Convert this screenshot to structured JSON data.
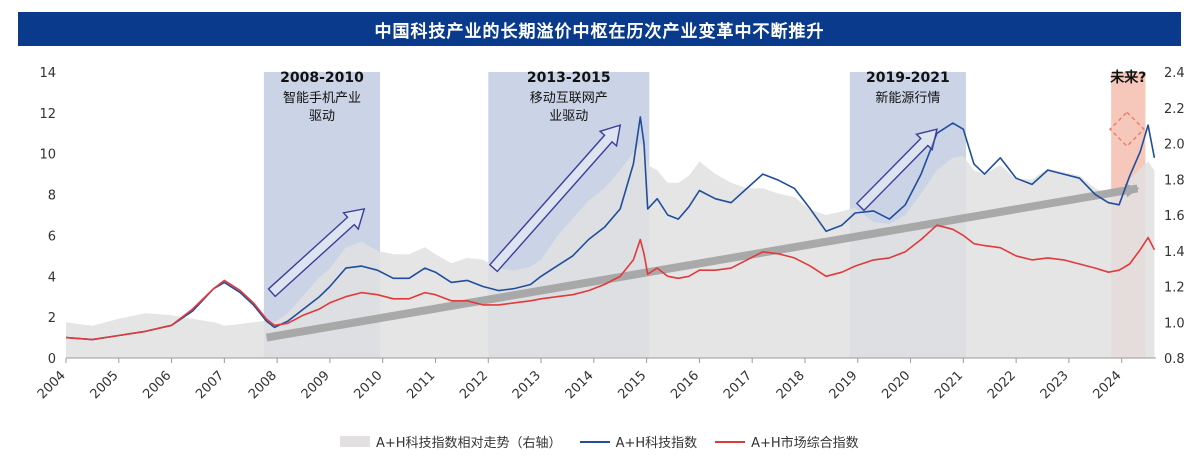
{
  "header": {
    "title": "中国科技产业的长期溢价中枢在历次产业变革中不断推升"
  },
  "chart_data": {
    "type": "line",
    "title": "中国科技产业的长期溢价中枢在历次产业变革中不断推升",
    "xlim": [
      2004.0,
      2024.65
    ],
    "ylim_left": [
      0,
      14
    ],
    "ylim_right": [
      0.8,
      2.4
    ],
    "left_ticks": [
      "0",
      "2",
      "4",
      "6",
      "8",
      "10",
      "12",
      "14"
    ],
    "right_ticks": [
      "0.8",
      "1.0",
      "1.2",
      "1.4",
      "1.6",
      "1.8",
      "2.0",
      "2.2",
      "2.4"
    ],
    "x_ticks": [
      "2004",
      "2005",
      "2006",
      "2007",
      "2008",
      "2009",
      "2010",
      "2011",
      "2012",
      "2013",
      "2014",
      "2015",
      "2016",
      "2017",
      "2018",
      "2019",
      "2020",
      "2021",
      "2022",
      "2023",
      "2024"
    ],
    "periods": [
      {
        "label": "2008-2010",
        "sub": [
          "智能手机产业",
          "驱动"
        ],
        "start": 2007.75,
        "end": 2009.95,
        "color": "#b9c6de"
      },
      {
        "label": "2013-2015",
        "sub": [
          "移动互联网产",
          "业驱动"
        ],
        "start": 2012.0,
        "end": 2015.05,
        "color": "#b9c6de"
      },
      {
        "label": "2019-2021",
        "sub": [
          "新能源行情"
        ],
        "start": 2018.85,
        "end": 2021.05,
        "color": "#b9c6de"
      },
      {
        "label": "未来?",
        "sub": [],
        "start": 2023.8,
        "end": 2024.45,
        "color": "#f3b6a4"
      }
    ],
    "series": [
      {
        "name": "A+H科技指数",
        "axis": "left",
        "color": "#1f4e9c",
        "x": [
          2004.0,
          2004.5,
          2005.0,
          2005.5,
          2006.0,
          2006.4,
          2006.8,
          2007.0,
          2007.3,
          2007.55,
          2007.8,
          2007.95,
          2008.2,
          2008.5,
          2008.8,
          2009.0,
          2009.3,
          2009.6,
          2009.9,
          2010.2,
          2010.5,
          2010.8,
          2011.0,
          2011.3,
          2011.6,
          2011.9,
          2012.2,
          2012.5,
          2012.8,
          2013.0,
          2013.3,
          2013.6,
          2013.9,
          2014.2,
          2014.5,
          2014.75,
          2014.88,
          2014.95,
          2015.02,
          2015.2,
          2015.4,
          2015.6,
          2015.8,
          2016.0,
          2016.3,
          2016.6,
          2016.9,
          2017.2,
          2017.5,
          2017.8,
          2018.1,
          2018.4,
          2018.7,
          2018.95,
          2019.3,
          2019.6,
          2019.9,
          2020.2,
          2020.5,
          2020.8,
          2021.0,
          2021.2,
          2021.4,
          2021.7,
          2022.0,
          2022.3,
          2022.6,
          2022.9,
          2023.2,
          2023.5,
          2023.75,
          2023.95,
          2024.15,
          2024.35,
          2024.5,
          2024.62
        ],
        "y": [
          1.0,
          0.9,
          1.1,
          1.3,
          1.6,
          2.3,
          3.4,
          3.7,
          3.2,
          2.6,
          1.8,
          1.5,
          1.8,
          2.4,
          3.0,
          3.5,
          4.4,
          4.5,
          4.3,
          3.9,
          3.9,
          4.4,
          4.2,
          3.7,
          3.8,
          3.5,
          3.3,
          3.4,
          3.6,
          4.0,
          4.5,
          5.0,
          5.8,
          6.4,
          7.3,
          9.5,
          11.8,
          10.5,
          7.3,
          7.8,
          7.0,
          6.8,
          7.4,
          8.2,
          7.8,
          7.6,
          8.3,
          9.0,
          8.7,
          8.3,
          7.3,
          6.2,
          6.5,
          7.1,
          7.2,
          6.8,
          7.5,
          9.0,
          11.0,
          11.5,
          11.2,
          9.5,
          9.0,
          9.8,
          8.8,
          8.5,
          9.2,
          9.0,
          8.8,
          8.0,
          7.6,
          7.5,
          8.9,
          10.1,
          11.4,
          9.8
        ]
      },
      {
        "name": "A+H市场综合指数",
        "axis": "left",
        "color": "#e03a3a",
        "x": [
          2004.0,
          2004.5,
          2005.0,
          2005.5,
          2006.0,
          2006.4,
          2006.8,
          2007.0,
          2007.3,
          2007.55,
          2007.8,
          2007.95,
          2008.2,
          2008.5,
          2008.8,
          2009.0,
          2009.3,
          2009.6,
          2009.9,
          2010.2,
          2010.5,
          2010.8,
          2011.0,
          2011.3,
          2011.6,
          2011.9,
          2012.2,
          2012.5,
          2012.8,
          2013.0,
          2013.3,
          2013.6,
          2013.9,
          2014.2,
          2014.5,
          2014.75,
          2014.88,
          2014.95,
          2015.02,
          2015.2,
          2015.4,
          2015.6,
          2015.8,
          2016.0,
          2016.3,
          2016.6,
          2016.9,
          2017.2,
          2017.5,
          2017.8,
          2018.1,
          2018.4,
          2018.7,
          2018.95,
          2019.3,
          2019.6,
          2019.9,
          2020.2,
          2020.5,
          2020.8,
          2021.0,
          2021.2,
          2021.4,
          2021.7,
          2022.0,
          2022.3,
          2022.6,
          2022.9,
          2023.2,
          2023.5,
          2023.75,
          2023.95,
          2024.15,
          2024.35,
          2024.5,
          2024.62
        ],
        "y": [
          1.0,
          0.9,
          1.1,
          1.3,
          1.6,
          2.4,
          3.4,
          3.8,
          3.3,
          2.7,
          1.9,
          1.6,
          1.7,
          2.1,
          2.4,
          2.7,
          3.0,
          3.2,
          3.1,
          2.9,
          2.9,
          3.2,
          3.1,
          2.8,
          2.8,
          2.6,
          2.6,
          2.7,
          2.8,
          2.9,
          3.0,
          3.1,
          3.3,
          3.6,
          4.0,
          4.8,
          5.8,
          5.1,
          4.1,
          4.4,
          4.0,
          3.9,
          4.0,
          4.3,
          4.3,
          4.4,
          4.8,
          5.2,
          5.1,
          4.9,
          4.5,
          4.0,
          4.2,
          4.5,
          4.8,
          4.9,
          5.2,
          5.8,
          6.5,
          6.3,
          6.0,
          5.6,
          5.5,
          5.4,
          5.0,
          4.8,
          4.9,
          4.8,
          4.6,
          4.4,
          4.2,
          4.3,
          4.6,
          5.3,
          5.9,
          5.3
        ]
      },
      {
        "name": "A+H科技指数相对走势（右轴）",
        "axis": "right",
        "color": "#e2e0e0",
        "x": [
          2004.0,
          2004.5,
          2005.0,
          2005.5,
          2006.0,
          2006.4,
          2006.8,
          2007.0,
          2007.3,
          2007.55,
          2007.8,
          2007.95,
          2008.2,
          2008.5,
          2008.8,
          2009.0,
          2009.3,
          2009.6,
          2009.9,
          2010.2,
          2010.5,
          2010.8,
          2011.0,
          2011.3,
          2011.6,
          2011.9,
          2012.2,
          2012.5,
          2012.8,
          2013.0,
          2013.3,
          2013.6,
          2013.9,
          2014.2,
          2014.5,
          2014.75,
          2014.88,
          2014.95,
          2015.02,
          2015.2,
          2015.4,
          2015.6,
          2015.8,
          2016.0,
          2016.3,
          2016.6,
          2016.9,
          2017.2,
          2017.5,
          2017.8,
          2018.1,
          2018.4,
          2018.7,
          2018.95,
          2019.3,
          2019.6,
          2019.9,
          2020.2,
          2020.5,
          2020.8,
          2021.0,
          2021.2,
          2021.4,
          2021.7,
          2022.0,
          2022.3,
          2022.6,
          2022.9,
          2023.2,
          2023.5,
          2023.75,
          2023.95,
          2024.15,
          2024.35,
          2024.5,
          2024.62
        ],
        "y": [
          1.0,
          0.98,
          1.02,
          1.05,
          1.04,
          1.02,
          1.0,
          0.98,
          0.99,
          1.0,
          1.01,
          1.0,
          1.05,
          1.15,
          1.25,
          1.3,
          1.42,
          1.45,
          1.4,
          1.38,
          1.38,
          1.42,
          1.38,
          1.33,
          1.36,
          1.35,
          1.3,
          1.29,
          1.31,
          1.35,
          1.48,
          1.58,
          1.68,
          1.75,
          1.85,
          1.95,
          2.0,
          1.98,
          1.88,
          1.85,
          1.78,
          1.78,
          1.82,
          1.9,
          1.83,
          1.78,
          1.75,
          1.75,
          1.72,
          1.7,
          1.63,
          1.6,
          1.62,
          1.64,
          1.56,
          1.55,
          1.6,
          1.72,
          1.85,
          1.92,
          1.93,
          1.85,
          1.83,
          1.88,
          1.8,
          1.8,
          1.86,
          1.84,
          1.82,
          1.75,
          1.72,
          1.72,
          1.8,
          1.86,
          1.9,
          1.85
        ]
      }
    ],
    "trend_arrow": {
      "from": [
        2007.8,
        1.0
      ],
      "to": [
        2024.3,
        8.3
      ]
    },
    "period_arrows": [
      {
        "from": [
          2007.9,
          3.2
        ],
        "to": [
          2009.65,
          7.3
        ]
      },
      {
        "from": [
          2012.1,
          4.4
        ],
        "to": [
          2014.5,
          11.4
        ]
      },
      {
        "from": [
          2019.05,
          7.4
        ],
        "to": [
          2020.5,
          11.2
        ]
      }
    ],
    "future_marker": {
      "x": 2024.1,
      "y": 11.2
    },
    "legend": [
      "A+H科技指数相对走势（右轴）",
      "A+H科技指数",
      "A+H市场综合指数"
    ]
  }
}
